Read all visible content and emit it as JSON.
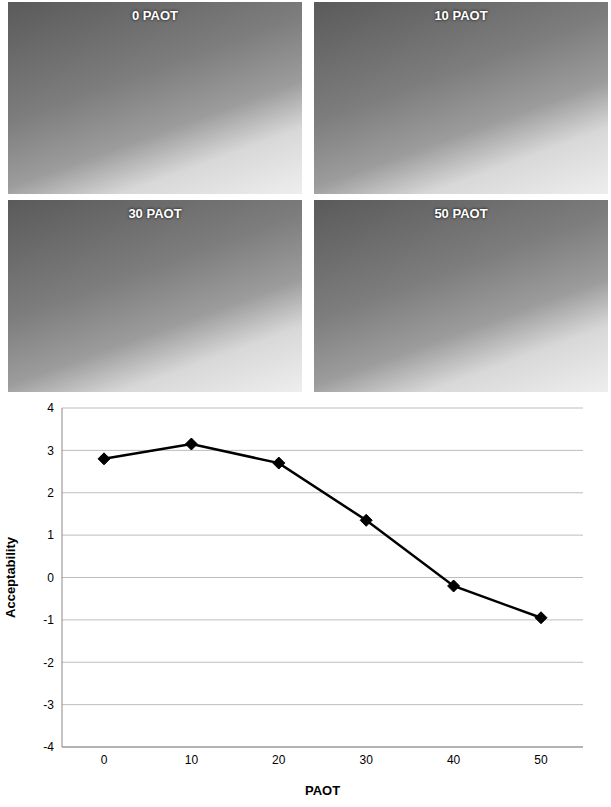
{
  "photo_labels": [
    "0 PAOT",
    "10 PAOT",
    "30 PAOT",
    "50 PAOT"
  ],
  "chart_data": {
    "type": "line",
    "x_label": "PAOT",
    "y_label": "Acceptability",
    "categories": [
      "0",
      "10",
      "20",
      "30",
      "40",
      "50"
    ],
    "values": [
      2.8,
      3.15,
      2.7,
      1.35,
      -0.2,
      -0.95
    ],
    "color": "#000000",
    "marker": "diamond",
    "ylim": [
      -4,
      4
    ],
    "yticks": [
      -4,
      -3,
      -2,
      -1,
      0,
      1,
      2,
      3,
      4
    ],
    "grid": true
  }
}
